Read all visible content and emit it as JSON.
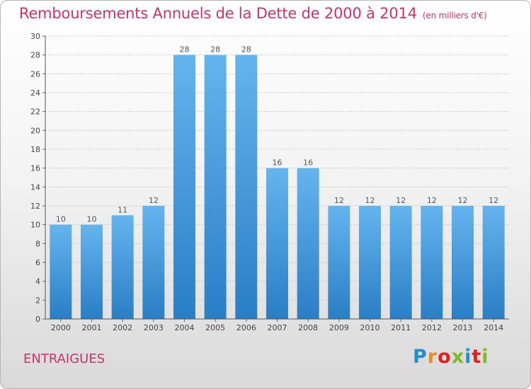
{
  "title": "Remboursements Annuels de la Dette de 2000 à 2014",
  "subtitle": "(en milliers d'€)",
  "place_name": "ENTRAIGUES",
  "logo": {
    "letters": [
      "P",
      "r",
      "o",
      "x",
      "i",
      "t",
      "i"
    ],
    "colors": [
      "#1f8fd0",
      "#f08a1c",
      "#e0201c",
      "#7fba27",
      "#1f8fd0",
      "#e0201c",
      "#7fba27"
    ]
  },
  "colors": {
    "title": "#c8326e",
    "bar_top": "#64b4ee",
    "bar_bottom": "#2a7ec5",
    "grid": "#c8c8c8"
  },
  "chart_data": {
    "type": "bar",
    "categories": [
      "2000",
      "2001",
      "2002",
      "2003",
      "2004",
      "2005",
      "2006",
      "2007",
      "2008",
      "2009",
      "2010",
      "2011",
      "2012",
      "2013",
      "2014"
    ],
    "values": [
      10,
      10,
      11,
      12,
      28,
      28,
      28,
      16,
      16,
      12,
      12,
      12,
      12,
      12,
      12
    ],
    "ylim": [
      0,
      30
    ],
    "yticks": [
      0,
      2,
      4,
      6,
      8,
      10,
      12,
      14,
      16,
      18,
      20,
      22,
      24,
      26,
      28,
      30
    ],
    "grid": true,
    "data_labels": true
  }
}
